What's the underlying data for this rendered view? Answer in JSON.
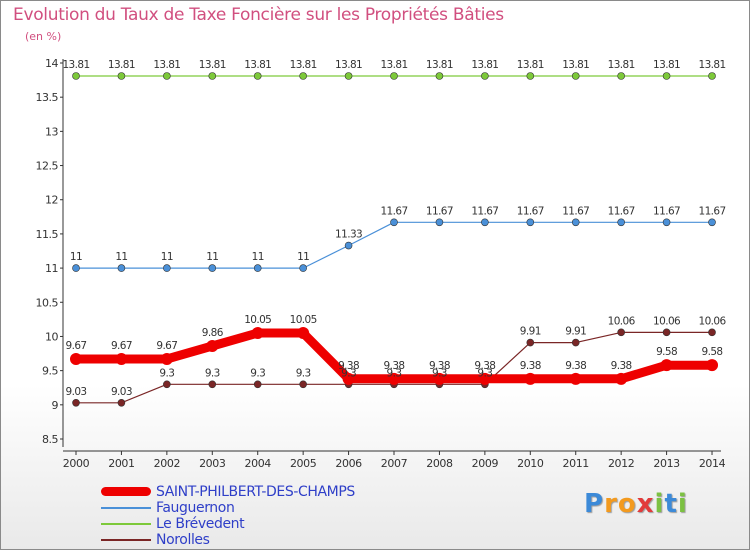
{
  "title": "Evolution du Taux de Taxe Foncière sur les Propriétés Bâties",
  "unit_label": "(en %)",
  "brand": {
    "text": "Proxiti",
    "letters": [
      {
        "ch": "P",
        "color": "#3c8ad8"
      },
      {
        "ch": "r",
        "color": "#f39a1e"
      },
      {
        "ch": "o",
        "color": "#f39a1e"
      },
      {
        "ch": "x",
        "color": "#e23b3b"
      },
      {
        "ch": "i",
        "color": "#7cc142"
      },
      {
        "ch": "t",
        "color": "#3c8ad8"
      },
      {
        "ch": "i",
        "color": "#7cc142"
      }
    ]
  },
  "chart_data": {
    "type": "line",
    "title": "Evolution du Taux de Taxe Foncière sur les Propriétés Bâties",
    "ylabel": "(en %)",
    "xlabel": "",
    "ylim": [
      8.5,
      14
    ],
    "yticks": [
      "8.5",
      "9",
      "9.5",
      "10",
      "10.5",
      "11",
      "11.5",
      "12",
      "12.5",
      "13",
      "13.5",
      "14"
    ],
    "categories": [
      "2000",
      "2001",
      "2002",
      "2003",
      "2004",
      "2005",
      "2006",
      "2007",
      "2008",
      "2009",
      "2010",
      "2011",
      "2012",
      "2013",
      "2014"
    ],
    "legend_position": "bottom-left",
    "grid": false,
    "series": [
      {
        "name": "SAINT-PHILBERT-DES-CHAMPS",
        "color": "#ee0000",
        "values": [
          9.67,
          9.67,
          9.67,
          9.86,
          10.05,
          10.05,
          9.38,
          9.38,
          9.38,
          9.38,
          9.38,
          9.38,
          9.38,
          9.58,
          9.58
        ],
        "labels": [
          "9.67",
          "9.67",
          "9.67",
          "9.86",
          "10.05",
          "10.05",
          "9.38",
          "9.38",
          "9.38",
          "9.38",
          "9.38",
          "9.38",
          "9.38",
          "9.58",
          "9.58"
        ]
      },
      {
        "name": "Fauguernon",
        "color": "#4a90d8",
        "values": [
          11,
          11,
          11,
          11,
          11,
          11,
          11.33,
          11.67,
          11.67,
          11.67,
          11.67,
          11.67,
          11.67,
          11.67,
          11.67
        ],
        "labels": [
          "11",
          "11",
          "11",
          "11",
          "11",
          "11",
          "11.33",
          "11.67",
          "11.67",
          "11.67",
          "11.67",
          "11.67",
          "11.67",
          "11.67",
          "11.67"
        ]
      },
      {
        "name": "Le Brévedent",
        "color": "#7dc93a",
        "values": [
          13.81,
          13.81,
          13.81,
          13.81,
          13.81,
          13.81,
          13.81,
          13.81,
          13.81,
          13.81,
          13.81,
          13.81,
          13.81,
          13.81,
          13.81
        ],
        "labels": [
          "13.81",
          "13.81",
          "13.81",
          "13.81",
          "13.81",
          "13.81",
          "13.81",
          "13.81",
          "13.81",
          "13.81",
          "13.81",
          "13.81",
          "13.81",
          "13.81",
          "13.81"
        ]
      },
      {
        "name": "Norolles",
        "color": "#7a2626",
        "values": [
          9.03,
          9.03,
          9.3,
          9.3,
          9.3,
          9.3,
          9.3,
          9.3,
          9.3,
          9.3,
          9.91,
          9.91,
          10.06,
          10.06,
          10.06
        ],
        "labels": [
          "9.03",
          "9.03",
          "9.3",
          "9.3",
          "9.3",
          "9.3",
          "9.3",
          "9.3",
          "9.3",
          "9.3",
          "9.91",
          "9.91",
          "10.06",
          "10.06",
          "10.06"
        ]
      }
    ]
  }
}
